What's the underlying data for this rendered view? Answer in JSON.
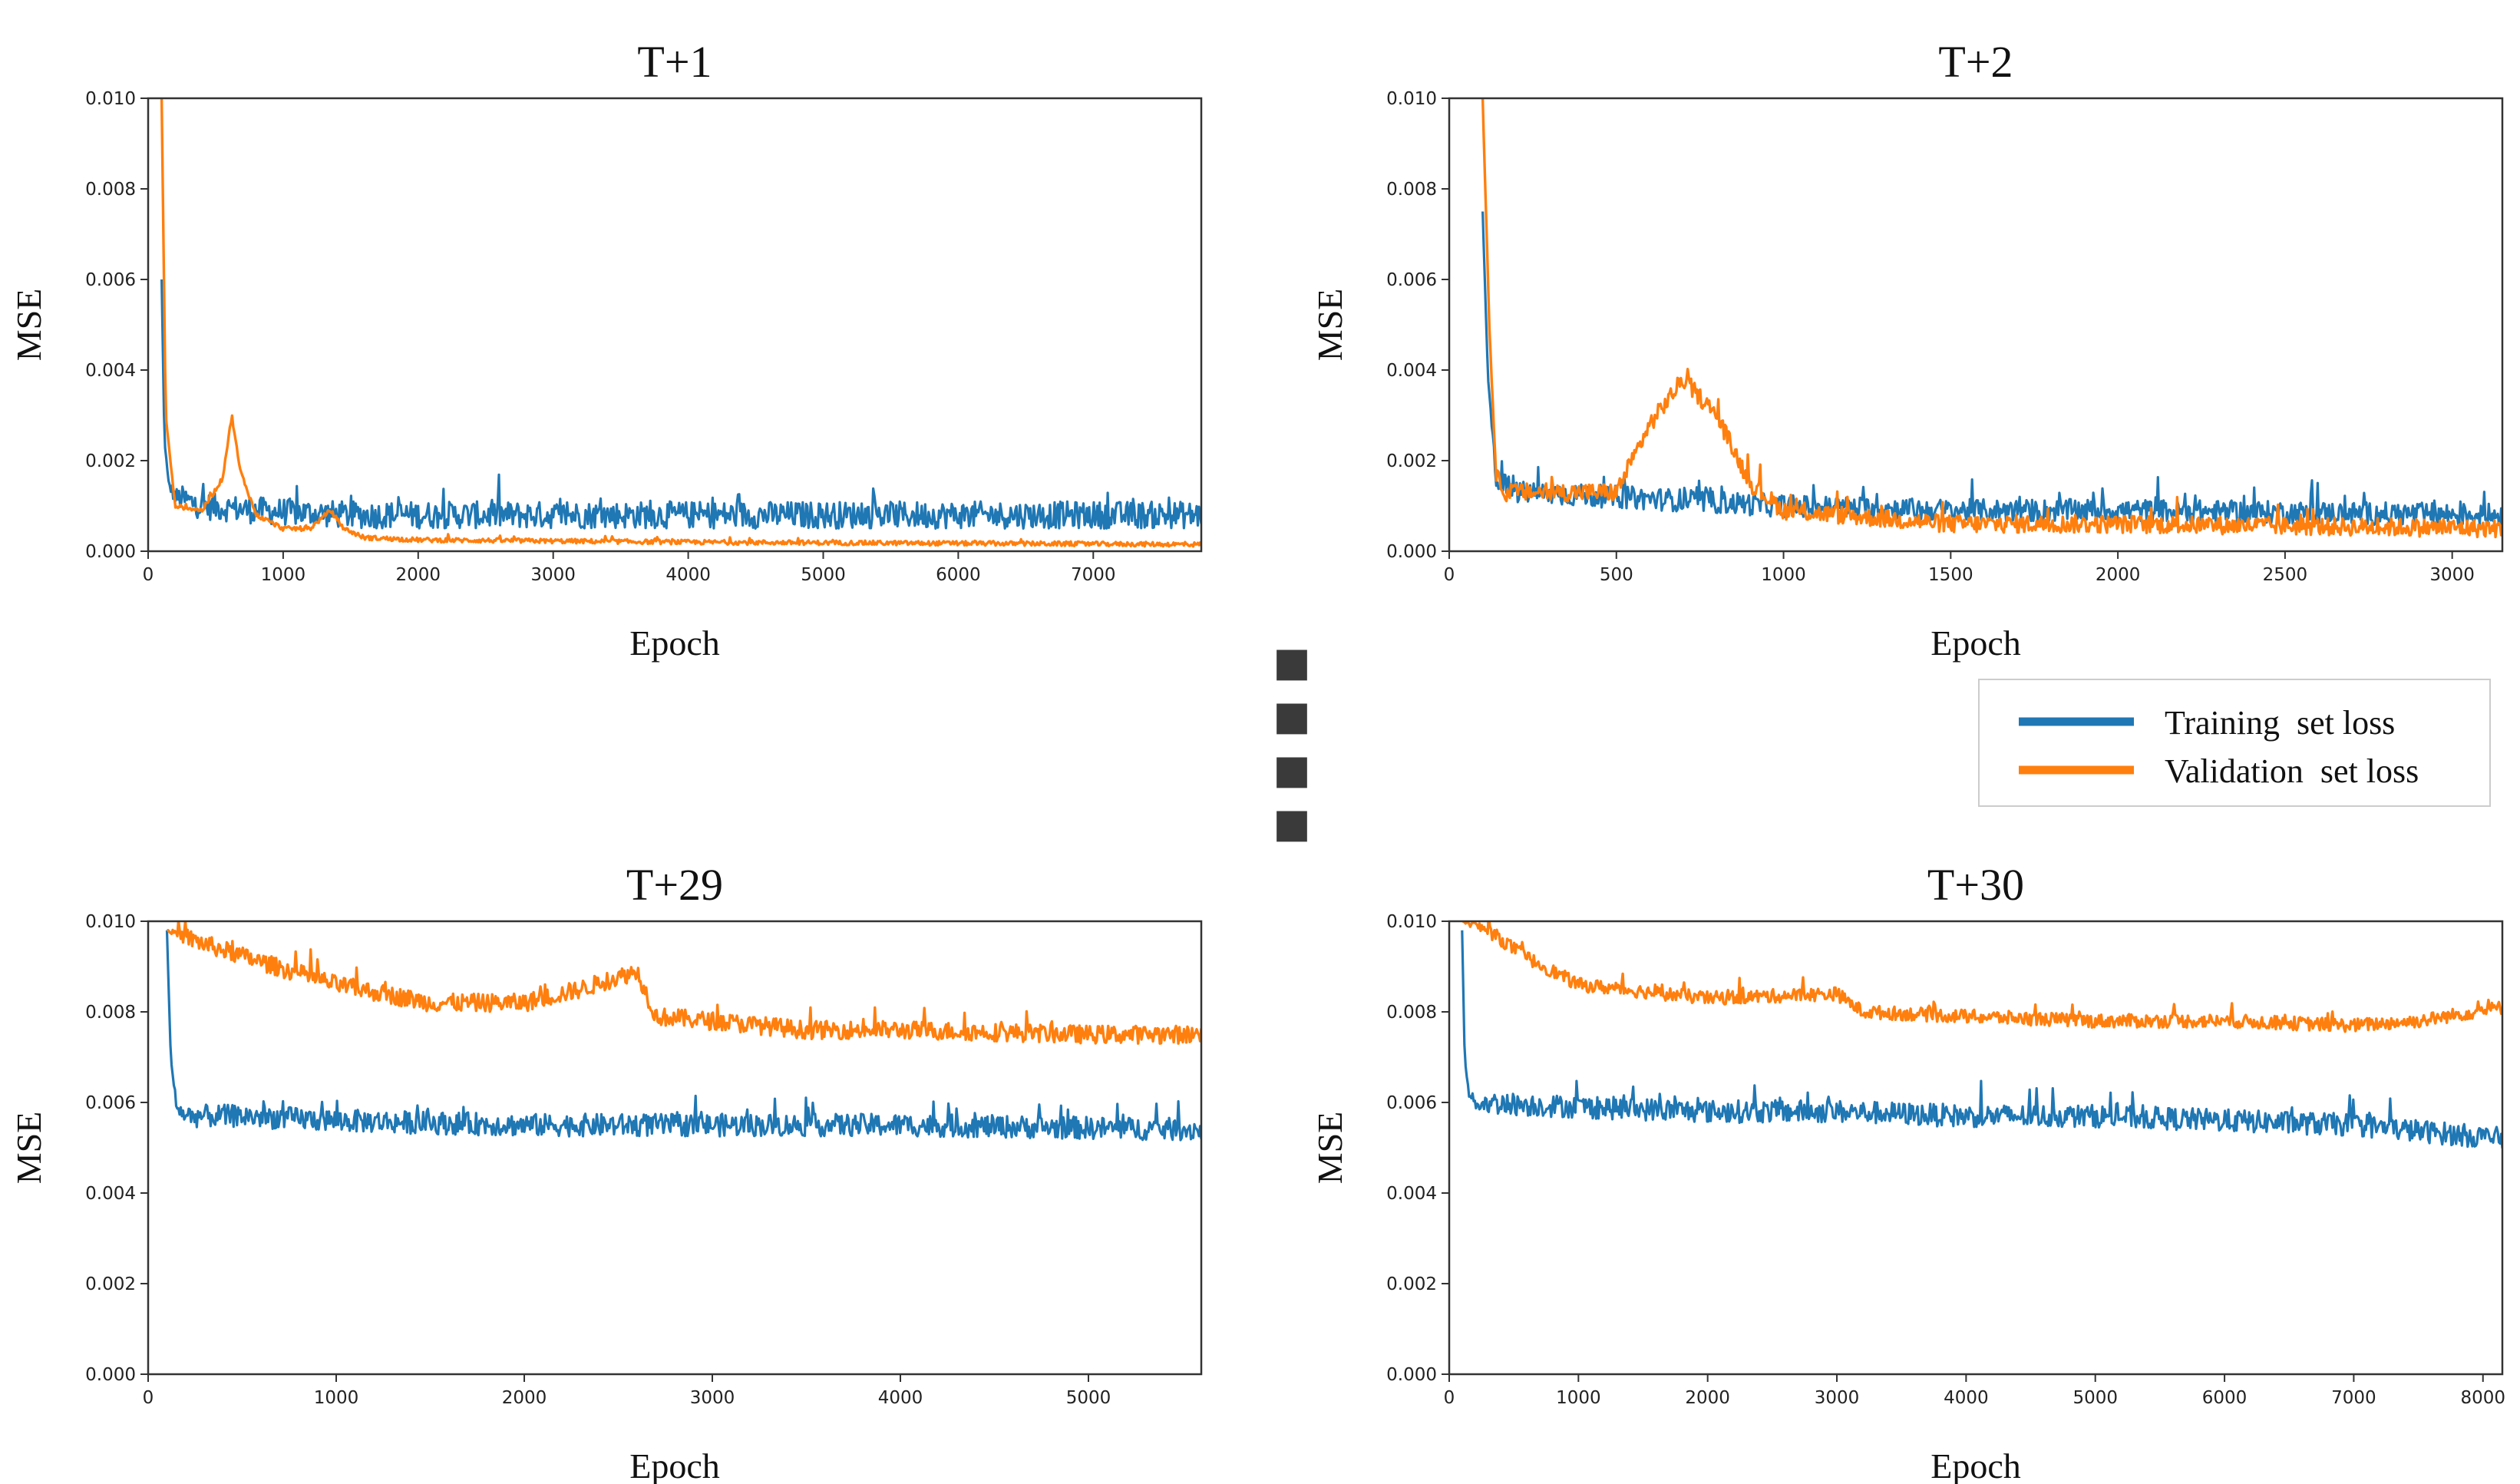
{
  "figure": {
    "separator_glyph": "■",
    "legend": {
      "entries": [
        {
          "label": "Training  set loss",
          "color": "#1f77b4"
        },
        {
          "label": "Validation  set loss",
          "color": "#ff7f0e"
        }
      ],
      "placement": "right, between upper and lower rows"
    }
  },
  "chart_data": [
    {
      "type": "line",
      "title": "T+1",
      "xlabel": "Epoch",
      "ylabel": "MSE",
      "xlim": [
        0,
        7800
      ],
      "ylim": [
        0,
        0.01
      ],
      "xticks": [
        0,
        1000,
        2000,
        3000,
        4000,
        5000,
        6000,
        7000
      ],
      "yticks": [
        "0.000",
        "0.002",
        "0.004",
        "0.006",
        "0.008",
        "0.010"
      ],
      "series": [
        {
          "name": "Training  set loss",
          "color": "#1f77b4",
          "x": [
            100,
            120,
            150,
            200,
            400,
            800,
            1500,
            3000,
            5000,
            7800
          ],
          "y": [
            0.006,
            0.0025,
            0.0015,
            0.0012,
            0.001,
            0.0009,
            0.0008,
            0.0008,
            0.0008,
            0.0008
          ],
          "noise": 0.0003
        },
        {
          "name": "Validation  set loss",
          "color": "#ff7f0e",
          "x": [
            100,
            130,
            200,
            400,
            550,
            620,
            680,
            800,
            1000,
            1200,
            1350,
            1450,
            1600,
            2000,
            4000,
            7800
          ],
          "y": [
            0.01,
            0.003,
            0.001,
            0.0009,
            0.0016,
            0.003,
            0.0018,
            0.0008,
            0.0005,
            0.0005,
            0.0009,
            0.0005,
            0.0003,
            0.00025,
            0.0002,
            0.00015
          ],
          "noise": 5e-05
        }
      ]
    },
    {
      "type": "line",
      "title": "T+2",
      "xlabel": "Epoch",
      "ylabel": "MSE",
      "xlim": [
        0,
        3150
      ],
      "ylim": [
        0,
        0.01
      ],
      "xticks": [
        0,
        500,
        1000,
        1500,
        2000,
        2500,
        3000
      ],
      "yticks": [
        "0.000",
        "0.002",
        "0.004",
        "0.006",
        "0.008",
        "0.010"
      ],
      "series": [
        {
          "name": "Training  set loss",
          "color": "#1f77b4",
          "x": [
            100,
            115,
            140,
            200,
            500,
            1000,
            1500,
            2000,
            3150
          ],
          "y": [
            0.0075,
            0.004,
            0.0016,
            0.0013,
            0.0012,
            0.001,
            0.0009,
            0.0009,
            0.0008
          ],
          "noise": 0.00025
        },
        {
          "name": "Validation  set loss",
          "color": "#ff7f0e",
          "x": [
            100,
            120,
            140,
            170,
            300,
            500,
            600,
            700,
            800,
            900,
            1000,
            1500,
            2000,
            3150
          ],
          "y": [
            0.01,
            0.005,
            0.0017,
            0.0013,
            0.0013,
            0.0013,
            0.0028,
            0.0038,
            0.003,
            0.0015,
            0.0009,
            0.0006,
            0.0006,
            0.0005
          ],
          "noise": 0.0002
        }
      ]
    },
    {
      "type": "line",
      "title": "T+29",
      "xlabel": "Epoch",
      "ylabel": "MSE",
      "xlim": [
        0,
        5600
      ],
      "ylim": [
        0,
        0.01
      ],
      "xticks": [
        0,
        1000,
        2000,
        3000,
        4000,
        5000
      ],
      "yticks": [
        "0.000",
        "0.002",
        "0.004",
        "0.006",
        "0.008",
        "0.010"
      ],
      "series": [
        {
          "name": "Training  set loss",
          "color": "#1f77b4",
          "x": [
            100,
            120,
            150,
            200,
            500,
            1000,
            2000,
            3000,
            4000,
            5600
          ],
          "y": [
            0.0098,
            0.007,
            0.0059,
            0.0057,
            0.0057,
            0.0056,
            0.0055,
            0.0055,
            0.0055,
            0.0054
          ],
          "noise": 0.00025
        },
        {
          "name": "Validation  set loss",
          "color": "#ff7f0e",
          "x": [
            100,
            300,
            600,
            1000,
            1500,
            2000,
            2300,
            2600,
            2700,
            3000,
            3500,
            4000,
            5000,
            5600
          ],
          "y": [
            0.0098,
            0.0095,
            0.0091,
            0.0086,
            0.0082,
            0.0082,
            0.0085,
            0.0089,
            0.0079,
            0.0078,
            0.0076,
            0.0076,
            0.0075,
            0.0075
          ],
          "noise": 0.0002
        }
      ]
    },
    {
      "type": "line",
      "title": "T+30",
      "xlabel": "Epoch",
      "ylabel": "MSE",
      "xlim": [
        0,
        8150
      ],
      "ylim": [
        0,
        0.01
      ],
      "xticks": [
        0,
        1000,
        2000,
        3000,
        4000,
        5000,
        6000,
        7000,
        8000
      ],
      "yticks": [
        "0.000",
        "0.002",
        "0.004",
        "0.006",
        "0.008",
        "0.010"
      ],
      "series": [
        {
          "name": "Training  set loss",
          "color": "#1f77b4",
          "x": [
            100,
            120,
            150,
            200,
            1000,
            2000,
            3000,
            4000,
            5000,
            6000,
            7000,
            8150
          ],
          "y": [
            0.0098,
            0.007,
            0.0062,
            0.006,
            0.0059,
            0.0058,
            0.0058,
            0.0057,
            0.0057,
            0.0056,
            0.0055,
            0.0052
          ],
          "noise": 0.00025
        },
        {
          "name": "Validation  set loss",
          "color": "#ff7f0e",
          "x": [
            100,
            300,
            600,
            1000,
            2000,
            3000,
            3200,
            4000,
            5000,
            6000,
            7000,
            7500,
            8150
          ],
          "y": [
            0.01,
            0.0098,
            0.0092,
            0.0086,
            0.0083,
            0.0084,
            0.008,
            0.0079,
            0.0078,
            0.0078,
            0.0077,
            0.0078,
            0.0081
          ],
          "noise": 0.00015
        }
      ]
    }
  ]
}
